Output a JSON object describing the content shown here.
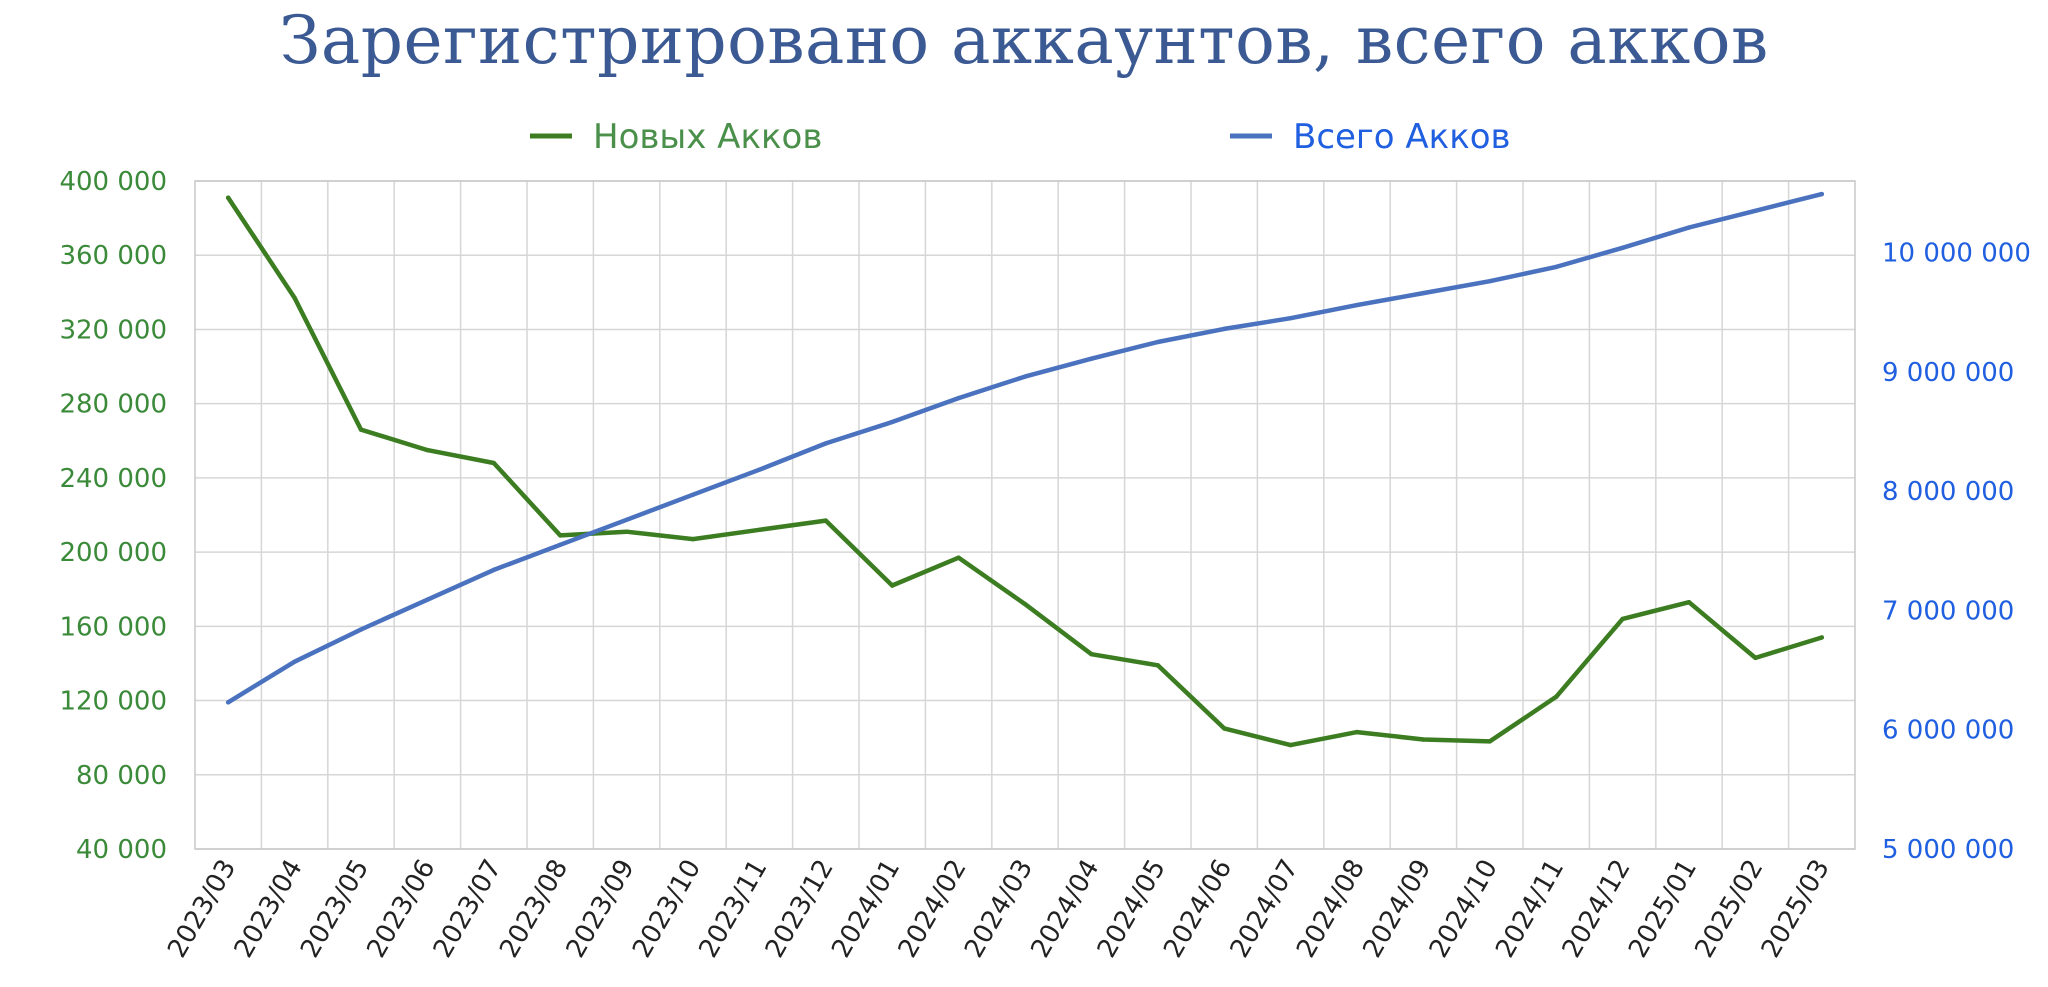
{
  "chart_data": {
    "type": "line",
    "title": "Зарегистрировано аккаунтов, всего акков",
    "legend_position": "top",
    "grid": true,
    "categories": [
      "2023/03",
      "2023/04",
      "2023/05",
      "2023/06",
      "2023/07",
      "2023/08",
      "2023/09",
      "2023/10",
      "2023/11",
      "2023/12",
      "2024/01",
      "2024/02",
      "2024/03",
      "2024/04",
      "2024/05",
      "2024/06",
      "2024/07",
      "2024/08",
      "2024/09",
      "2024/10",
      "2024/11",
      "2024/12",
      "2025/01",
      "2025/02",
      "2025/03"
    ],
    "left_axis": {
      "ylim": [
        40000,
        400000
      ],
      "ticks": [
        40000,
        80000,
        120000,
        160000,
        200000,
        240000,
        280000,
        320000,
        360000,
        400000
      ],
      "tick_labels": [
        "40 000",
        "80 000",
        "120 000",
        "160 000",
        "200 000",
        "240 000",
        "280 000",
        "320 000",
        "360 000",
        "400 000"
      ],
      "color": "#3a8a3a"
    },
    "right_axis": {
      "ylim": [
        5000000,
        10600000
      ],
      "ticks": [
        5000000,
        6000000,
        7000000,
        8000000,
        9000000,
        10000000
      ],
      "tick_labels": [
        "5 000 000",
        "6 000 000",
        "7 000 000",
        "8 000 000",
        "9 000 000",
        "10 000 000"
      ],
      "color": "#1f5fe0"
    },
    "series": [
      {
        "name": "Новых Акков",
        "axis": "left",
        "color": "#3c7d22",
        "legend_color": "#4a8f4a",
        "values": [
          391000,
          337000,
          266000,
          255000,
          248000,
          209000,
          211000,
          207000,
          212000,
          217000,
          182000,
          197000,
          172000,
          145000,
          139000,
          105000,
          96000,
          103000,
          99000,
          98000,
          122000,
          164000,
          173000,
          143000,
          154000
        ]
      },
      {
        "name": "Всего Акков",
        "axis": "right",
        "color": "#4a72bf",
        "legend_color": "#1f5fe0",
        "values": [
          6230000,
          6570000,
          6840000,
          7090000,
          7340000,
          7550000,
          7760000,
          7970000,
          8180000,
          8400000,
          8580000,
          8780000,
          8960000,
          9110000,
          9250000,
          9360000,
          9450000,
          9560000,
          9660000,
          9760000,
          9880000,
          10040000,
          10210000,
          10350000,
          10490000
        ]
      }
    ]
  }
}
